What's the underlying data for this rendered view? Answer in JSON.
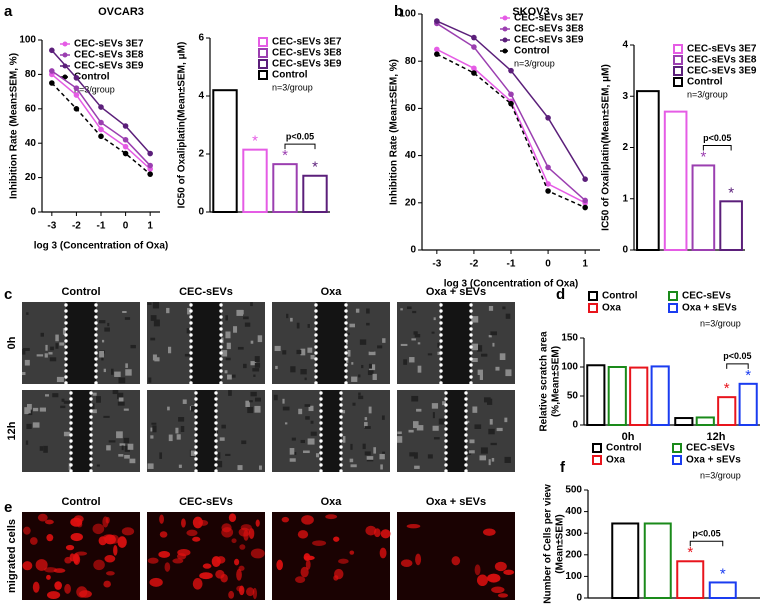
{
  "figure": {
    "panel_labels": [
      "a",
      "b",
      "c",
      "d",
      "e",
      "f"
    ],
    "scratch": {
      "columns": [
        "Control",
        "CEC-sEVs",
        "Oxa",
        "Oxa + sEVs"
      ],
      "rows": [
        "0h",
        "12h"
      ]
    },
    "migration": {
      "columns": [
        "Control",
        "CEC-sEVs",
        "Oxa",
        "Oxa + sEVs"
      ],
      "rows": [
        "migrated cells"
      ]
    }
  },
  "chart_data": [
    {
      "type": "line",
      "title": "OVCAR3",
      "xlabel": "log 3 (Concentration of Oxa)",
      "ylabel": "Inhibition Rate (Mean±SEM, %)",
      "x": [
        -3,
        -2,
        -1,
        0,
        1
      ],
      "xlim": [
        -3.4,
        1.4
      ],
      "xticks": [
        -3,
        -2,
        -1,
        0,
        1
      ],
      "ylim": [
        0,
        100
      ],
      "yticks": [
        0,
        20,
        40,
        60,
        80,
        100
      ],
      "legend": "upper right",
      "n_label": "n=3/group",
      "series": [
        {
          "name": "CEC-sEVs 3E7",
          "color": "#e55ce5",
          "values": [
            80,
            68,
            48,
            38,
            25
          ]
        },
        {
          "name": "CEC-sEVs 3E8",
          "color": "#9b3fb0",
          "values": [
            82,
            72,
            52,
            42,
            27
          ]
        },
        {
          "name": "CEC-sEVs 3E9",
          "color": "#5b1f7a",
          "values": [
            94,
            78,
            61,
            50,
            34
          ]
        },
        {
          "name": "Control",
          "color": "#000000",
          "dashed": true,
          "values": [
            75,
            60,
            44,
            34,
            22
          ]
        }
      ]
    },
    {
      "type": "bar",
      "ylabel": "IC50 of Oxaliplatin(Mean±SEM, μM)",
      "categories": [
        null,
        null,
        null,
        null
      ],
      "ylim": [
        0,
        6
      ],
      "yticks": [
        0,
        2,
        4,
        6
      ],
      "legend": "upper right",
      "p_label": "p<0.05",
      "n_label": "n=3/group",
      "series": [
        {
          "name": "CEC-sEVs 3E7",
          "color": "#e55ce5",
          "values": [
            null,
            2.15,
            null,
            null
          ],
          "mark_labels": [
            null,
            "*",
            null,
            null
          ]
        },
        {
          "name": "CEC-sEVs 3E8",
          "color": "#9b3fb0",
          "values": [
            null,
            null,
            1.65,
            null
          ],
          "mark_labels": [
            null,
            null,
            "*",
            null
          ]
        },
        {
          "name": "CEC-sEVs 3E9",
          "color": "#5b1f7a",
          "values": [
            null,
            null,
            null,
            1.25
          ],
          "mark_labels": [
            null,
            null,
            null,
            "*"
          ]
        },
        {
          "name": "Control",
          "color": "#000000",
          "values": [
            4.2,
            null,
            null,
            null
          ]
        }
      ]
    },
    {
      "type": "line",
      "title": "SKOV3",
      "xlabel": "log 3 (Concentration of Oxa)",
      "ylabel": "Inhibition Rate (Mean±SEM, %)",
      "x": [
        -3,
        -2,
        -1,
        0,
        1
      ],
      "xlim": [
        -3.4,
        1.4
      ],
      "xticks": [
        -3,
        -2,
        -1,
        0,
        1
      ],
      "ylim": [
        0,
        100
      ],
      "yticks": [
        0,
        20,
        40,
        60,
        80,
        100
      ],
      "legend": "upper right",
      "n_label": "n=3/group",
      "series": [
        {
          "name": "CEC-sEVs 3E7",
          "color": "#e55ce5",
          "values": [
            85,
            77,
            63,
            28,
            20
          ]
        },
        {
          "name": "CEC-sEVs 3E8",
          "color": "#9b3fb0",
          "values": [
            96,
            86,
            66,
            35,
            21
          ]
        },
        {
          "name": "CEC-sEVs 3E9",
          "color": "#5b1f7a",
          "values": [
            97,
            90,
            76,
            56,
            30
          ]
        },
        {
          "name": "Control",
          "color": "#000000",
          "dashed": true,
          "values": [
            83,
            75,
            62,
            25,
            18
          ]
        }
      ]
    },
    {
      "type": "bar",
      "ylabel": "IC50 of Oxaliplatin(Mean±SEM, μM)",
      "categories": [
        null,
        null,
        null,
        null
      ],
      "ylim": [
        0,
        4
      ],
      "yticks": [
        0,
        1,
        2,
        3,
        4
      ],
      "legend": "upper right",
      "p_label": "p<0.05",
      "n_label": "n=3/group",
      "series": [
        {
          "name": "CEC-sEVs 3E7",
          "color": "#e55ce5",
          "values": [
            null,
            2.7,
            null,
            null
          ]
        },
        {
          "name": "CEC-sEVs 3E8",
          "color": "#9b3fb0",
          "values": [
            null,
            null,
            1.65,
            null
          ],
          "mark_labels": [
            null,
            null,
            "*",
            null
          ]
        },
        {
          "name": "CEC-sEVs 3E9",
          "color": "#5b1f7a",
          "values": [
            null,
            null,
            null,
            0.95
          ],
          "mark_labels": [
            null,
            null,
            null,
            "*"
          ]
        },
        {
          "name": "Control",
          "color": "#000000",
          "values": [
            3.1,
            null,
            null,
            null
          ]
        }
      ]
    },
    {
      "type": "bar",
      "ylabel": [
        "Relative scratch area",
        "(%,Mean±SEM)"
      ],
      "categories": [
        "0h",
        "12h"
      ],
      "ylim": [
        0,
        150
      ],
      "yticks": [
        0,
        50,
        100,
        150
      ],
      "legend": "top",
      "p_label": "p<0.05",
      "n_label": "n=3/group",
      "series": [
        {
          "name": "Control",
          "color": "#000000",
          "values": [
            103,
            12
          ]
        },
        {
          "name": "CEC-sEVs",
          "color": "#1a8a1a",
          "values": [
            100,
            13
          ]
        },
        {
          "name": "Oxa",
          "color": "#e8141c",
          "values": [
            99,
            48
          ],
          "mark_labels": [
            null,
            "*"
          ]
        },
        {
          "name": "Oxa + sEVs",
          "color": "#1a3cf0",
          "values": [
            101,
            71
          ],
          "mark_labels": [
            null,
            "*"
          ]
        }
      ]
    },
    {
      "type": "bar",
      "ylabel": [
        "Number of Cells per view",
        "(Mean±SEM)"
      ],
      "categories": [
        null
      ],
      "ylim": [
        0,
        500
      ],
      "yticks": [
        0,
        100,
        200,
        300,
        400,
        500
      ],
      "legend": "top",
      "p_label": "p<0.05",
      "n_label": "n=3/group",
      "series": [
        {
          "name": "Control",
          "color": "#000000",
          "values": [
            345
          ]
        },
        {
          "name": "CEC-sEVs",
          "color": "#1a8a1a",
          "values": [
            345
          ]
        },
        {
          "name": "Oxa",
          "color": "#e8141c",
          "values": [
            170
          ],
          "mark_labels": [
            "*"
          ]
        },
        {
          "name": "Oxa + sEVs",
          "color": "#1a3cf0",
          "values": [
            72
          ],
          "mark_labels": [
            "*"
          ]
        }
      ]
    }
  ]
}
